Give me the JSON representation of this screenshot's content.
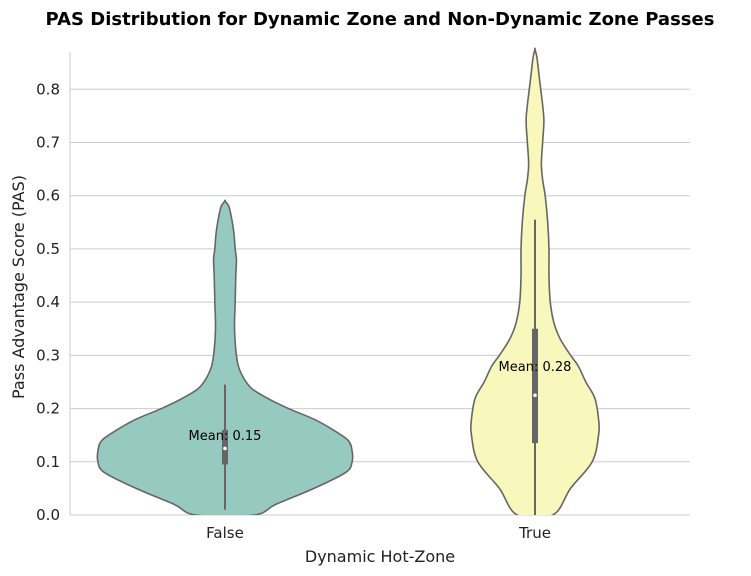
{
  "chart_data": {
    "type": "violin",
    "title": "PAS Distribution for Dynamic Zone and Non-Dynamic Zone Passes",
    "xlabel": "Dynamic Hot-Zone",
    "ylabel": "Pass Advantage Score (PAS)",
    "ylim": [
      0.0,
      0.87
    ],
    "yticks": [
      "0.0",
      "0.1",
      "0.2",
      "0.3",
      "0.4",
      "0.5",
      "0.6",
      "0.7",
      "0.8"
    ],
    "grid": "horizontal",
    "categories": [
      "False",
      "True"
    ],
    "colors": [
      "#96c9bf",
      "#f8f8bd"
    ],
    "violins": [
      {
        "category": "False",
        "mean": 0.15,
        "mean_label": "Mean: 0.15",
        "whisker": [
          0.01,
          0.245
        ],
        "iqr": [
          0.095,
          0.16
        ],
        "median": 0.125,
        "density": [
          [
            0.0,
            0.23
          ],
          [
            0.02,
            0.4
          ],
          [
            0.05,
            0.7
          ],
          [
            0.08,
            0.95
          ],
          [
            0.1,
            1.0
          ],
          [
            0.12,
            1.0
          ],
          [
            0.14,
            0.97
          ],
          [
            0.16,
            0.85
          ],
          [
            0.18,
            0.7
          ],
          [
            0.2,
            0.5
          ],
          [
            0.22,
            0.33
          ],
          [
            0.24,
            0.2
          ],
          [
            0.27,
            0.12
          ],
          [
            0.3,
            0.09
          ],
          [
            0.35,
            0.075
          ],
          [
            0.4,
            0.08
          ],
          [
            0.45,
            0.085
          ],
          [
            0.48,
            0.09
          ],
          [
            0.5,
            0.08
          ],
          [
            0.53,
            0.07
          ],
          [
            0.56,
            0.05
          ],
          [
            0.58,
            0.03
          ],
          [
            0.59,
            0.0
          ]
        ]
      },
      {
        "category": "True",
        "mean": 0.28,
        "mean_label": "Mean: 0.28",
        "whisker": [
          0.0,
          0.555
        ],
        "iqr": [
          0.135,
          0.35
        ],
        "median": 0.225,
        "density": [
          [
            0.0,
            0.14
          ],
          [
            0.05,
            0.28
          ],
          [
            0.1,
            0.45
          ],
          [
            0.15,
            0.5
          ],
          [
            0.18,
            0.5
          ],
          [
            0.22,
            0.47
          ],
          [
            0.25,
            0.4
          ],
          [
            0.28,
            0.34
          ],
          [
            0.3,
            0.28
          ],
          [
            0.33,
            0.2
          ],
          [
            0.36,
            0.15
          ],
          [
            0.4,
            0.12
          ],
          [
            0.45,
            0.11
          ],
          [
            0.5,
            0.11
          ],
          [
            0.55,
            0.1
          ],
          [
            0.6,
            0.08
          ],
          [
            0.63,
            0.06
          ],
          [
            0.66,
            0.05
          ],
          [
            0.7,
            0.06
          ],
          [
            0.74,
            0.07
          ],
          [
            0.77,
            0.06
          ],
          [
            0.8,
            0.045
          ],
          [
            0.83,
            0.03
          ],
          [
            0.86,
            0.015
          ],
          [
            0.875,
            0.0
          ]
        ]
      }
    ]
  }
}
